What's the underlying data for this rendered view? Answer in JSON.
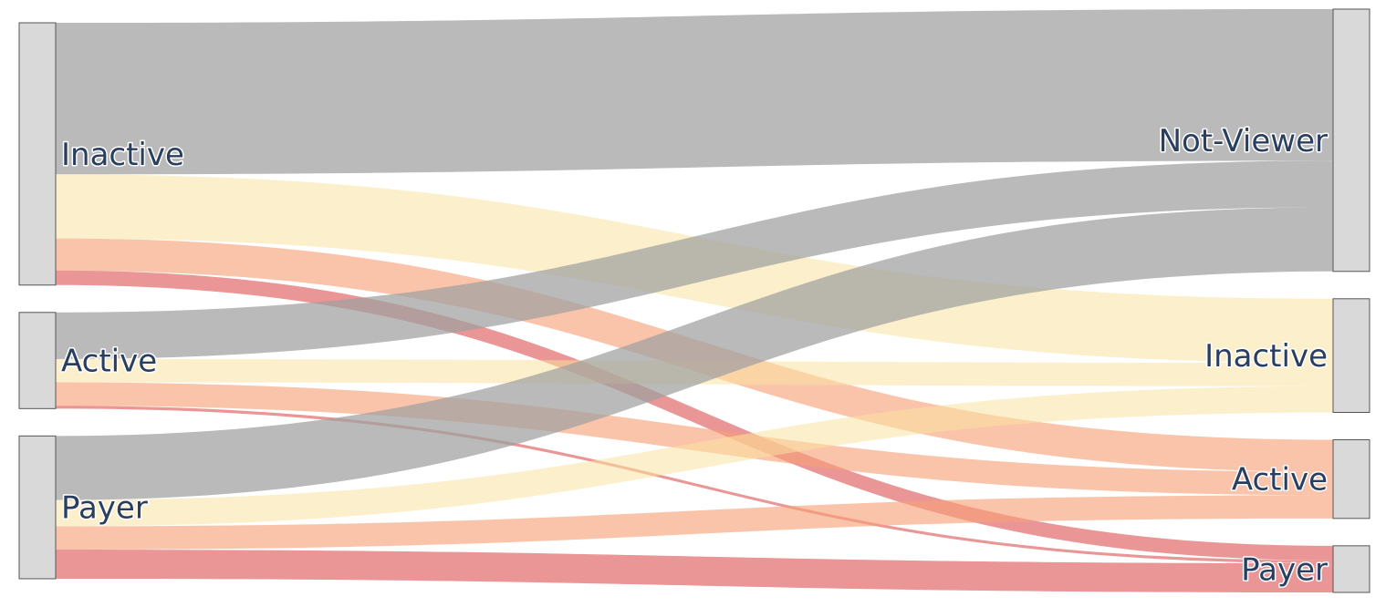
{
  "chart_data": {
    "type": "sankey",
    "nodes": [
      {
        "id": "src-inactive",
        "label": "Inactive",
        "column": "source"
      },
      {
        "id": "src-active",
        "label": "Active",
        "column": "source"
      },
      {
        "id": "src-payer",
        "label": "Payer",
        "column": "source"
      },
      {
        "id": "tgt-notviewer",
        "label": "Not-Viewer",
        "column": "target"
      },
      {
        "id": "tgt-inactive",
        "label": "Inactive",
        "column": "target"
      },
      {
        "id": "tgt-active",
        "label": "Active",
        "column": "target"
      },
      {
        "id": "tgt-payer",
        "label": "Payer",
        "column": "target"
      }
    ],
    "links": [
      {
        "source": "src-inactive",
        "target": "tgt-notviewer",
        "value": 52,
        "category": "Not-Viewer"
      },
      {
        "source": "src-inactive",
        "target": "tgt-inactive",
        "value": 22,
        "category": "Inactive"
      },
      {
        "source": "src-inactive",
        "target": "tgt-active",
        "value": 11,
        "category": "Active"
      },
      {
        "source": "src-inactive",
        "target": "tgt-payer",
        "value": 5,
        "category": "Payer"
      },
      {
        "source": "src-active",
        "target": "tgt-notviewer",
        "value": 16,
        "category": "Not-Viewer"
      },
      {
        "source": "src-active",
        "target": "tgt-inactive",
        "value": 8,
        "category": "Inactive"
      },
      {
        "source": "src-active",
        "target": "tgt-active",
        "value": 8,
        "category": "Active"
      },
      {
        "source": "src-active",
        "target": "tgt-payer",
        "value": 1,
        "category": "Payer"
      },
      {
        "source": "src-payer",
        "target": "tgt-notviewer",
        "value": 22,
        "category": "Not-Viewer"
      },
      {
        "source": "src-payer",
        "target": "tgt-inactive",
        "value": 9,
        "category": "Inactive"
      },
      {
        "source": "src-payer",
        "target": "tgt-active",
        "value": 8,
        "category": "Active"
      },
      {
        "source": "src-payer",
        "target": "tgt-payer",
        "value": 10,
        "category": "Payer"
      }
    ],
    "link_colors": {
      "Not-Viewer": "rgba(160,160,160,0.72)",
      "Inactive": "rgba(250,225,160,0.55)",
      "Active": "rgba(247,160,120,0.62)",
      "Payer": "rgba(220,80,80,0.60)"
    },
    "node_color": "#d9d9d9",
    "label_color": "#2a3f5f"
  }
}
